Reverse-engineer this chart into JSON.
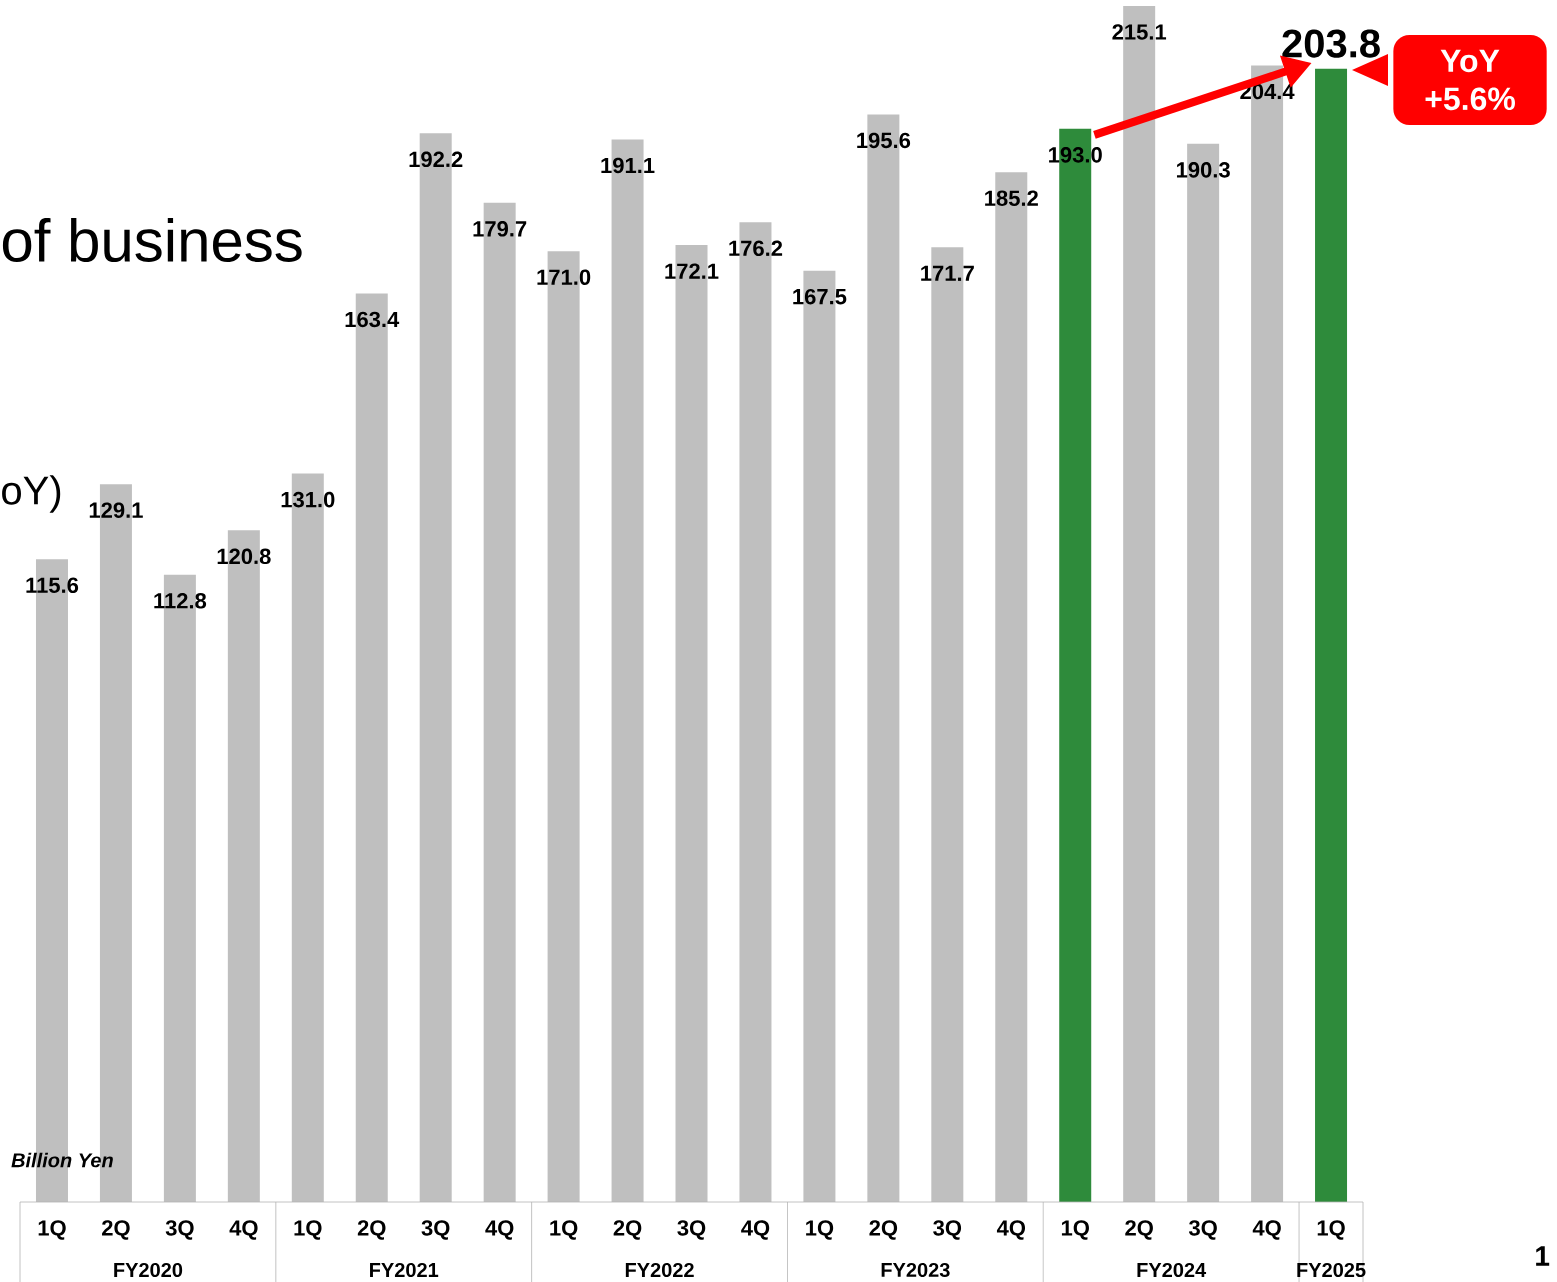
{
  "chart_data": {
    "type": "bar",
    "title": "of business",
    "subtitle": "oY)",
    "categories": [
      "1Q",
      "2Q",
      "3Q",
      "4Q",
      "1Q",
      "2Q",
      "3Q",
      "4Q",
      "1Q",
      "2Q",
      "3Q",
      "4Q",
      "1Q",
      "2Q",
      "3Q",
      "4Q",
      "1Q",
      "2Q",
      "3Q",
      "4Q",
      "1Q"
    ],
    "values": [
      115.6,
      129.1,
      112.8,
      120.8,
      131.0,
      163.4,
      192.2,
      179.7,
      171.0,
      191.1,
      172.1,
      176.2,
      167.5,
      195.6,
      171.7,
      185.2,
      193.0,
      215.1,
      190.3,
      204.4,
      203.8
    ],
    "colors": [
      "#bfbfbf",
      "#bfbfbf",
      "#bfbfbf",
      "#bfbfbf",
      "#bfbfbf",
      "#bfbfbf",
      "#bfbfbf",
      "#bfbfbf",
      "#bfbfbf",
      "#bfbfbf",
      "#bfbfbf",
      "#bfbfbf",
      "#bfbfbf",
      "#bfbfbf",
      "#bfbfbf",
      "#bfbfbf",
      "#2e8b3b",
      "#bfbfbf",
      "#bfbfbf",
      "#bfbfbf",
      "#2e8b3b"
    ],
    "data_labels": true,
    "value_labels": [
      "115.6",
      "129.1",
      "112.8",
      "120.8",
      "131.0",
      "163.4",
      "192.2",
      "179.7",
      "171.0",
      "191.1",
      "172.1",
      "176.2",
      "167.5",
      "195.6",
      "171.7",
      "185.2",
      "193.0",
      "215.1",
      "190.3",
      "204.4",
      "203.8"
    ],
    "annotations": [
      "Billion Yen",
      "YoY +5.6%",
      "FY2020",
      "FY2021",
      "FY2022",
      "FY2023",
      "FY2024",
      "FY2025",
      "1"
    ]
  }
}
